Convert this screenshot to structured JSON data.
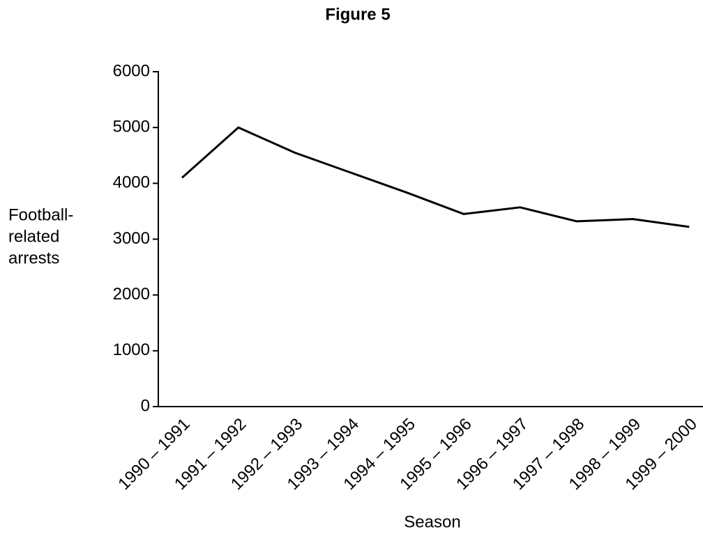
{
  "chart_data": {
    "type": "line",
    "title": "Figure 5",
    "x_label": "Season",
    "y_label": [
      "Football-",
      "related",
      "arrests"
    ],
    "categories": [
      "1990 – 1991",
      "1991 – 1992",
      "1992 – 1993",
      "1993 – 1994",
      "1994 – 1995",
      "1995 – 1996",
      "1996 – 1997",
      "1997 – 1998",
      "1998 – 1999",
      "1999 – 2000"
    ],
    "values": [
      4100,
      5000,
      4550,
      4190,
      3830,
      3450,
      3570,
      3320,
      3360,
      3220
    ],
    "color": "#000000",
    "ylim": [
      0,
      6000
    ],
    "yticks": [
      0,
      1000,
      2000,
      3000,
      4000,
      5000,
      6000
    ],
    "grid": false
  }
}
